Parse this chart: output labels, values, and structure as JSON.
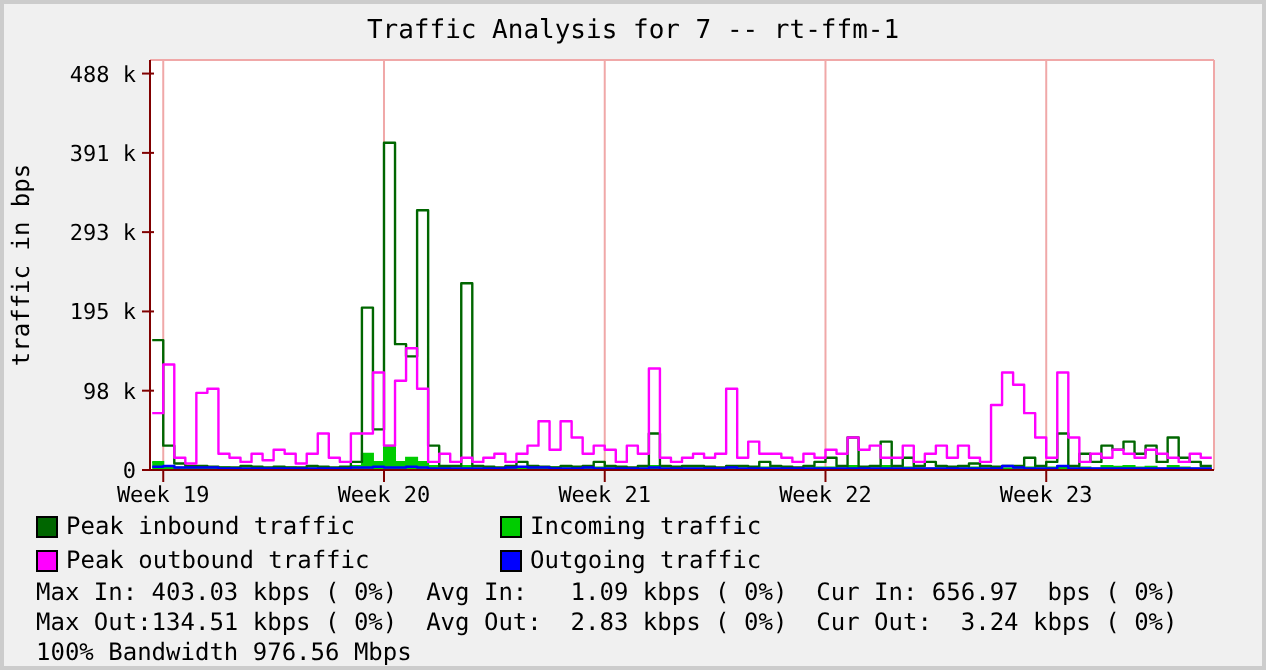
{
  "chart_data": {
    "type": "step",
    "title": "Traffic Analysis for 7 -- rt-ffm-1",
    "ylabel": "traffic in bps",
    "categories": [
      null,
      "Week 19",
      null,
      null,
      null,
      null,
      null,
      null,
      null,
      null,
      null,
      null,
      null,
      null,
      null,
      null,
      null,
      null,
      null,
      null,
      null,
      "Week 20",
      null,
      null,
      null,
      null,
      null,
      null,
      null,
      null,
      null,
      null,
      null,
      null,
      null,
      null,
      null,
      null,
      null,
      null,
      null,
      "Week 21",
      null,
      null,
      null,
      null,
      null,
      null,
      null,
      null,
      null,
      null,
      null,
      null,
      null,
      null,
      null,
      null,
      null,
      null,
      null,
      "Week 22",
      null,
      null,
      null,
      null,
      null,
      null,
      null,
      null,
      null,
      null,
      null,
      null,
      null,
      null,
      null,
      null,
      null,
      null,
      null,
      "Week 23",
      null,
      null,
      null,
      null,
      null,
      null,
      null,
      null,
      null,
      null,
      null,
      null,
      null,
      null,
      null
    ],
    "series": [
      {
        "name": "Peak inbound traffic",
        "color": "#006600",
        "values": [
          160,
          30,
          8,
          5,
          5,
          4,
          3,
          3,
          5,
          4,
          3,
          4,
          3,
          3,
          5,
          4,
          3,
          4,
          10,
          200,
          50,
          403,
          155,
          140,
          320,
          30,
          5,
          5,
          230,
          5,
          4,
          3,
          5,
          10,
          5,
          4,
          3,
          5,
          4,
          5,
          10,
          5,
          4,
          3,
          5,
          45,
          5,
          4,
          5,
          5,
          4,
          3,
          5,
          5,
          4,
          10,
          5,
          4,
          3,
          5,
          10,
          15,
          5,
          40,
          4,
          5,
          35,
          5,
          15,
          5,
          10,
          5,
          4,
          5,
          8,
          5,
          4,
          5,
          5,
          15,
          5,
          10,
          45,
          5,
          20,
          10,
          30,
          25,
          35,
          20,
          30,
          10,
          40,
          15,
          10,
          5,
          5
        ]
      },
      {
        "name": "Incoming traffic",
        "type": "area",
        "color": "#00cc00",
        "values": [
          10,
          5,
          3,
          3,
          2,
          2,
          3,
          2,
          2,
          2,
          2,
          2,
          3,
          2,
          2,
          2,
          2,
          3,
          5,
          20,
          10,
          30,
          10,
          15,
          10,
          5,
          3,
          2,
          5,
          2,
          2,
          2,
          3,
          2,
          2,
          2,
          3,
          2,
          2,
          2,
          3,
          2,
          2,
          2,
          2,
          5,
          2,
          2,
          2,
          2,
          2,
          2,
          3,
          2,
          2,
          3,
          2,
          2,
          2,
          2,
          3,
          3,
          2,
          5,
          2,
          2,
          5,
          2,
          3,
          2,
          2,
          2,
          2,
          2,
          3,
          2,
          2,
          2,
          2,
          3,
          2,
          3,
          5,
          2,
          3,
          2,
          5,
          4,
          5,
          3,
          4,
          2,
          5,
          3,
          2,
          2,
          2
        ]
      },
      {
        "name": "Peak outbound traffic",
        "color": "#ff00ff",
        "values": [
          70,
          130,
          15,
          8,
          95,
          100,
          20,
          15,
          10,
          20,
          12,
          25,
          20,
          8,
          20,
          45,
          15,
          10,
          45,
          45,
          120,
          30,
          110,
          150,
          100,
          10,
          20,
          10,
          15,
          10,
          15,
          20,
          10,
          20,
          30,
          60,
          25,
          60,
          40,
          20,
          30,
          25,
          10,
          30,
          20,
          125,
          15,
          10,
          15,
          20,
          15,
          20,
          100,
          15,
          35,
          20,
          20,
          15,
          10,
          20,
          15,
          25,
          20,
          40,
          25,
          30,
          15,
          15,
          30,
          10,
          20,
          30,
          15,
          30,
          15,
          10,
          80,
          120,
          105,
          70,
          40,
          15,
          120,
          40,
          10,
          20,
          15,
          25,
          20,
          15,
          25,
          20,
          15,
          10,
          20,
          15,
          15
        ]
      },
      {
        "name": "Outgoing traffic",
        "color": "#0000ff",
        "values": [
          4,
          5,
          3,
          3,
          3,
          3,
          2,
          2,
          2,
          2,
          2,
          2,
          2,
          2,
          2,
          2,
          2,
          2,
          3,
          3,
          4,
          3,
          3,
          4,
          3,
          2,
          2,
          2,
          2,
          2,
          2,
          2,
          3,
          4,
          3,
          3,
          2,
          2,
          2,
          3,
          2,
          2,
          2,
          2,
          2,
          3,
          2,
          2,
          2,
          2,
          2,
          2,
          3,
          2,
          2,
          2,
          2,
          2,
          2,
          2,
          2,
          2,
          2,
          2,
          2,
          2,
          2,
          2,
          2,
          2,
          2,
          2,
          2,
          2,
          2,
          2,
          2,
          5,
          3,
          2,
          2,
          2,
          5,
          2,
          2,
          2,
          2,
          2,
          2,
          2,
          2,
          2,
          2,
          2,
          2,
          2,
          2
        ]
      }
    ],
    "ylim": [
      0,
      505
    ],
    "yticks": [
      0,
      {
        "value": 97.7,
        "label": "98 k"
      },
      {
        "value": 195.3,
        "label": "195 k"
      },
      {
        "value": 293,
        "label": "293 k"
      },
      {
        "value": 390.6,
        "label": "391 k"
      },
      {
        "value": 488.3,
        "label": "488 k"
      }
    ],
    "grid": true,
    "legend": "bottom",
    "marker": "none",
    "line_style": "solid",
    "annotations": [
      "Max In: 403.03 kbps ( 0%)  Avg In:   1.09 kbps ( 0%)  Cur In: 656.97  bps ( 0%)",
      "Max Out:134.51 kbps ( 0%)  Avg Out:  2.83 kbps ( 0%)  Cur Out:  3.24 kbps ( 0%)",
      "100% Bandwidth 976.56 Mbps"
    ]
  }
}
